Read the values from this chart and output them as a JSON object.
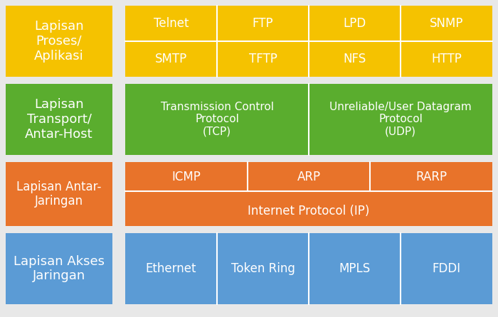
{
  "bg": "#e8e8e8",
  "colors": {
    "yellow": "#F5C200",
    "green": "#5AAD2E",
    "orange": "#E8732A",
    "blue": "#5B9BD5"
  },
  "white": "#FFFFFF",
  "divider_lw": 1.5,
  "layers": [
    {
      "label": "Lapisan\nProses/\nAplikasi",
      "color": "yellow",
      "label_fontsize": 13,
      "type": "grid_2x4",
      "row1": [
        "Telnet",
        "FTP",
        "LPD",
        "SNMP"
      ],
      "row2": [
        "SMTP",
        "TFTP",
        "NFS",
        "HTTP"
      ],
      "cell_fontsize": 12
    },
    {
      "label": "Lapisan\nTransport/\nAntar-Host",
      "color": "green",
      "label_fontsize": 13,
      "type": "two_col",
      "cells": [
        "Transmission Control\nProtocol\n(TCP)",
        "Unreliable/User Datagram\nProtocol\n(UDP)"
      ],
      "cell_fontsize": 11
    },
    {
      "label": "Lapisan Antar-\nJaringan",
      "color": "orange",
      "label_fontsize": 12,
      "type": "mixed",
      "top_cells": [
        "ICMP",
        "ARP",
        "RARP"
      ],
      "bottom_cell": "Internet Protocol (IP)",
      "cell_fontsize": 12
    },
    {
      "label": "Lapisan Akses\nJaringan",
      "color": "blue",
      "label_fontsize": 13,
      "type": "four_col",
      "cells": [
        "Ethernet",
        "Token Ring",
        "MPLS",
        "FDDI"
      ],
      "cell_fontsize": 12
    }
  ]
}
